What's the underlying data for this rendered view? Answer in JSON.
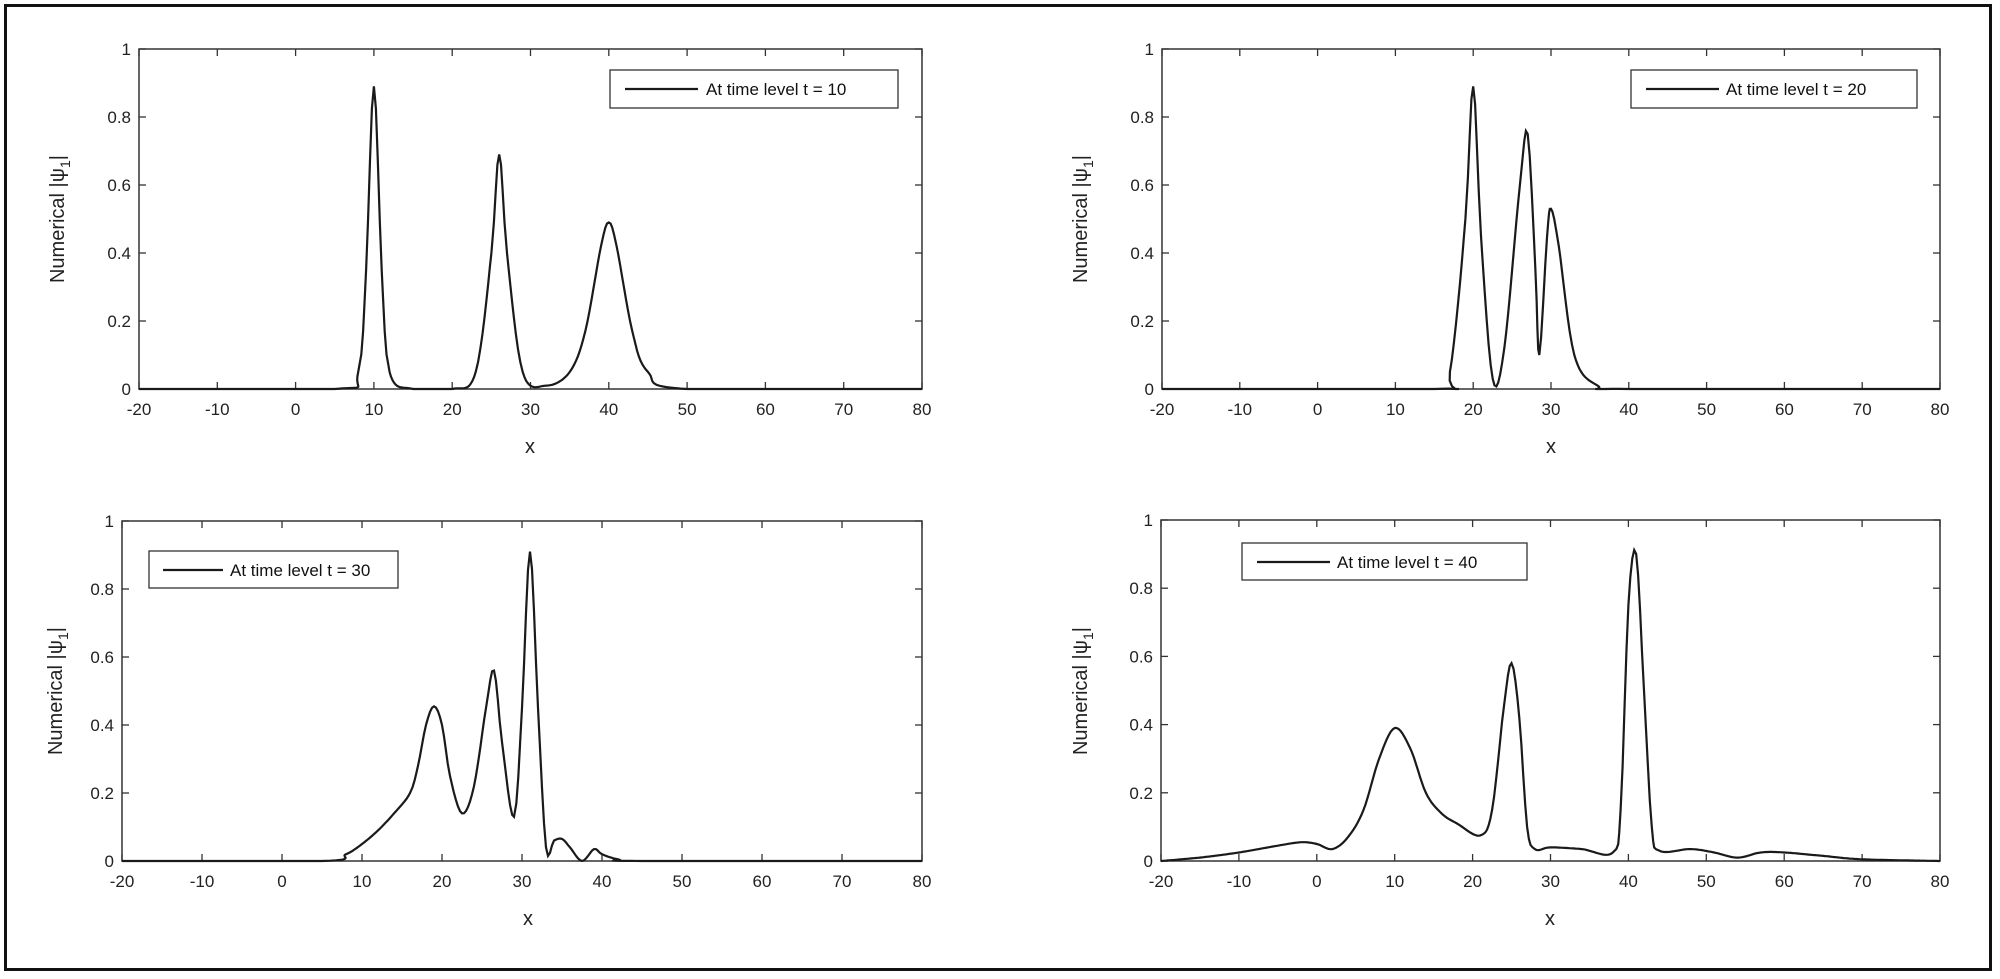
{
  "chart_data": [
    {
      "type": "line",
      "panel": "top-left",
      "title": "",
      "xlabel": "x",
      "ylabel": "Numerical |ψ1|",
      "xlim": [
        -20,
        80
      ],
      "ylim": [
        0,
        1
      ],
      "xticks": [
        -20,
        -10,
        0,
        10,
        20,
        30,
        40,
        50,
        60,
        70,
        80
      ],
      "yticks": [
        0,
        0.2,
        0.4,
        0.6,
        0.8,
        1
      ],
      "ytick_labels": [
        "0",
        "0.2",
        "0.4",
        "0.6",
        "0.8",
        "1"
      ],
      "grid": false,
      "legend": {
        "position": "upper right",
        "entries": [
          "At time level t = 10"
        ]
      },
      "series": [
        {
          "name": "At time level t = 10",
          "peaks": [
            {
              "x": 10,
              "y": 0.89,
              "w": 1.1
            },
            {
              "x": 26,
              "y": 0.69,
              "w": 1.45
            },
            {
              "x": 40,
              "y": 0.49,
              "w": 2.0
            }
          ],
          "x": [
            -20,
            5,
            8,
            9,
            10,
            11,
            12,
            15,
            20,
            23,
            25,
            26,
            27,
            29,
            32,
            35,
            37,
            39,
            40,
            41,
            43,
            45,
            50,
            80
          ],
          "y": [
            0,
            0,
            0.05,
            0.35,
            0.89,
            0.35,
            0.05,
            0,
            0,
            0.05,
            0.4,
            0.69,
            0.4,
            0.05,
            0.01,
            0.05,
            0.17,
            0.42,
            0.49,
            0.42,
            0.17,
            0.05,
            0,
            0
          ]
        }
      ]
    },
    {
      "type": "line",
      "panel": "top-right",
      "title": "",
      "xlabel": "x",
      "ylabel": "Numerical |ψ1|",
      "xlim": [
        -20,
        80
      ],
      "ylim": [
        0,
        1
      ],
      "xticks": [
        -20,
        -10,
        0,
        10,
        20,
        30,
        40,
        50,
        60,
        70,
        80
      ],
      "yticks": [
        0,
        0.2,
        0.4,
        0.6,
        0.8,
        1
      ],
      "ytick_labels": [
        "0",
        "0.2",
        "0.4",
        "0.6",
        "0.8",
        "1"
      ],
      "grid": false,
      "legend": {
        "position": "upper right",
        "entries": [
          "At time level t = 20"
        ]
      },
      "series": [
        {
          "name": "At time level t = 20",
          "peaks": [
            {
              "x": 20,
              "y": 0.89,
              "w": 1.1
            },
            {
              "x": 27,
              "y": 0.75,
              "w": 0.9
            },
            {
              "x": 30,
              "y": 0.53,
              "w": 1.3
            }
          ],
          "x": [
            -20,
            15,
            17,
            19,
            20,
            21,
            22.5,
            24,
            26,
            27,
            28,
            28.5,
            29.5,
            30,
            31,
            33,
            36,
            40,
            80
          ],
          "y": [
            0,
            0,
            0.05,
            0.5,
            0.89,
            0.45,
            0.03,
            0.12,
            0.6,
            0.75,
            0.35,
            0.1,
            0.45,
            0.53,
            0.42,
            0.1,
            0.01,
            0,
            0
          ]
        }
      ]
    },
    {
      "type": "line",
      "panel": "bottom-left",
      "title": "",
      "xlabel": "x",
      "ylabel": "Numerical |ψ1|",
      "xlim": [
        -20,
        80
      ],
      "ylim": [
        0,
        1
      ],
      "xticks": [
        -20,
        -10,
        0,
        10,
        20,
        30,
        40,
        50,
        60,
        70,
        80
      ],
      "yticks": [
        0,
        0.2,
        0.4,
        0.6,
        0.8,
        1
      ],
      "ytick_labels": [
        "0",
        "0.2",
        "0.4",
        "0.6",
        "0.8",
        "1"
      ],
      "grid": false,
      "legend": {
        "position": "upper left",
        "entries": [
          "At time level t = 30"
        ]
      },
      "series": [
        {
          "name": "At time level t = 30",
          "x": [
            -20,
            5,
            8,
            10,
            12,
            14,
            16,
            17,
            18,
            19,
            20,
            21,
            22.5,
            24,
            25.5,
            26.5,
            27.5,
            29,
            30,
            31,
            32,
            33,
            34,
            35,
            36,
            37.5,
            39,
            40,
            42,
            45,
            80
          ],
          "y": [
            0,
            0,
            0.02,
            0.05,
            0.09,
            0.14,
            0.2,
            0.28,
            0.4,
            0.455,
            0.4,
            0.25,
            0.14,
            0.22,
            0.45,
            0.56,
            0.35,
            0.13,
            0.45,
            0.91,
            0.45,
            0.04,
            0.06,
            0.065,
            0.04,
            0.0,
            0.035,
            0.02,
            0.005,
            0,
            0
          ]
        }
      ]
    },
    {
      "type": "line",
      "panel": "bottom-right",
      "title": "",
      "xlabel": "x",
      "ylabel": "Numerical |ψ1|",
      "xlim": [
        -20,
        80
      ],
      "ylim": [
        0,
        1
      ],
      "xticks": [
        -20,
        -10,
        0,
        10,
        20,
        30,
        40,
        50,
        60,
        70,
        80
      ],
      "yticks": [
        0,
        0.2,
        0.4,
        0.6,
        0.8,
        1
      ],
      "ytick_labels": [
        "0",
        "0.2",
        "0.4",
        "0.6",
        "0.8",
        "1"
      ],
      "grid": false,
      "legend": {
        "position": "upper left",
        "entries": [
          "At time level t = 40"
        ]
      },
      "series": [
        {
          "name": "At time level t = 40",
          "x": [
            -20,
            -15,
            -10,
            -5,
            -2,
            0,
            2,
            4,
            6,
            8,
            10,
            12,
            14,
            16,
            18,
            21,
            22.5,
            24,
            25,
            26,
            27,
            28,
            30,
            34,
            38,
            39,
            40,
            41,
            42,
            43,
            44,
            48,
            51,
            54,
            57,
            60,
            65,
            70,
            80
          ],
          "y": [
            0,
            0.01,
            0.025,
            0.045,
            0.055,
            0.05,
            0.035,
            0.07,
            0.15,
            0.3,
            0.39,
            0.33,
            0.2,
            0.14,
            0.11,
            0.075,
            0.15,
            0.45,
            0.58,
            0.42,
            0.1,
            0.035,
            0.04,
            0.035,
            0.025,
            0.15,
            0.75,
            0.9,
            0.5,
            0.1,
            0.03,
            0.035,
            0.025,
            0.01,
            0.025,
            0.025,
            0.015,
            0.005,
            0
          ]
        }
      ]
    }
  ],
  "panels": [
    {
      "legend": "At time level t = 10",
      "ylabel_main": "Numerical |ψ",
      "ylabel_sub": "1",
      "ylabel_end": "|",
      "xlabel": "x"
    },
    {
      "legend": "At time level t = 20",
      "ylabel_main": "Numerical |ψ",
      "ylabel_sub": "1",
      "ylabel_end": "|",
      "xlabel": "x"
    },
    {
      "legend": "At time level t = 30",
      "ylabel_main": "Numerical |ψ",
      "ylabel_sub": "1",
      "ylabel_end": "|",
      "xlabel": "x"
    },
    {
      "legend": "At time level t = 40",
      "ylabel_main": "Numerical |ψ",
      "ylabel_sub": "1",
      "ylabel_end": "|",
      "xlabel": "x"
    }
  ],
  "xtick_labels": [
    "-20",
    "-10",
    "0",
    "10",
    "20",
    "30",
    "40",
    "50",
    "60",
    "70",
    "80"
  ],
  "ytick_labels": [
    "0",
    "0.2",
    "0.4",
    "0.6",
    "0.8",
    "1"
  ],
  "colors": {
    "line": "#1a1a1a",
    "axis": "#333333",
    "frame": "#111111",
    "background": "#ffffff"
  }
}
